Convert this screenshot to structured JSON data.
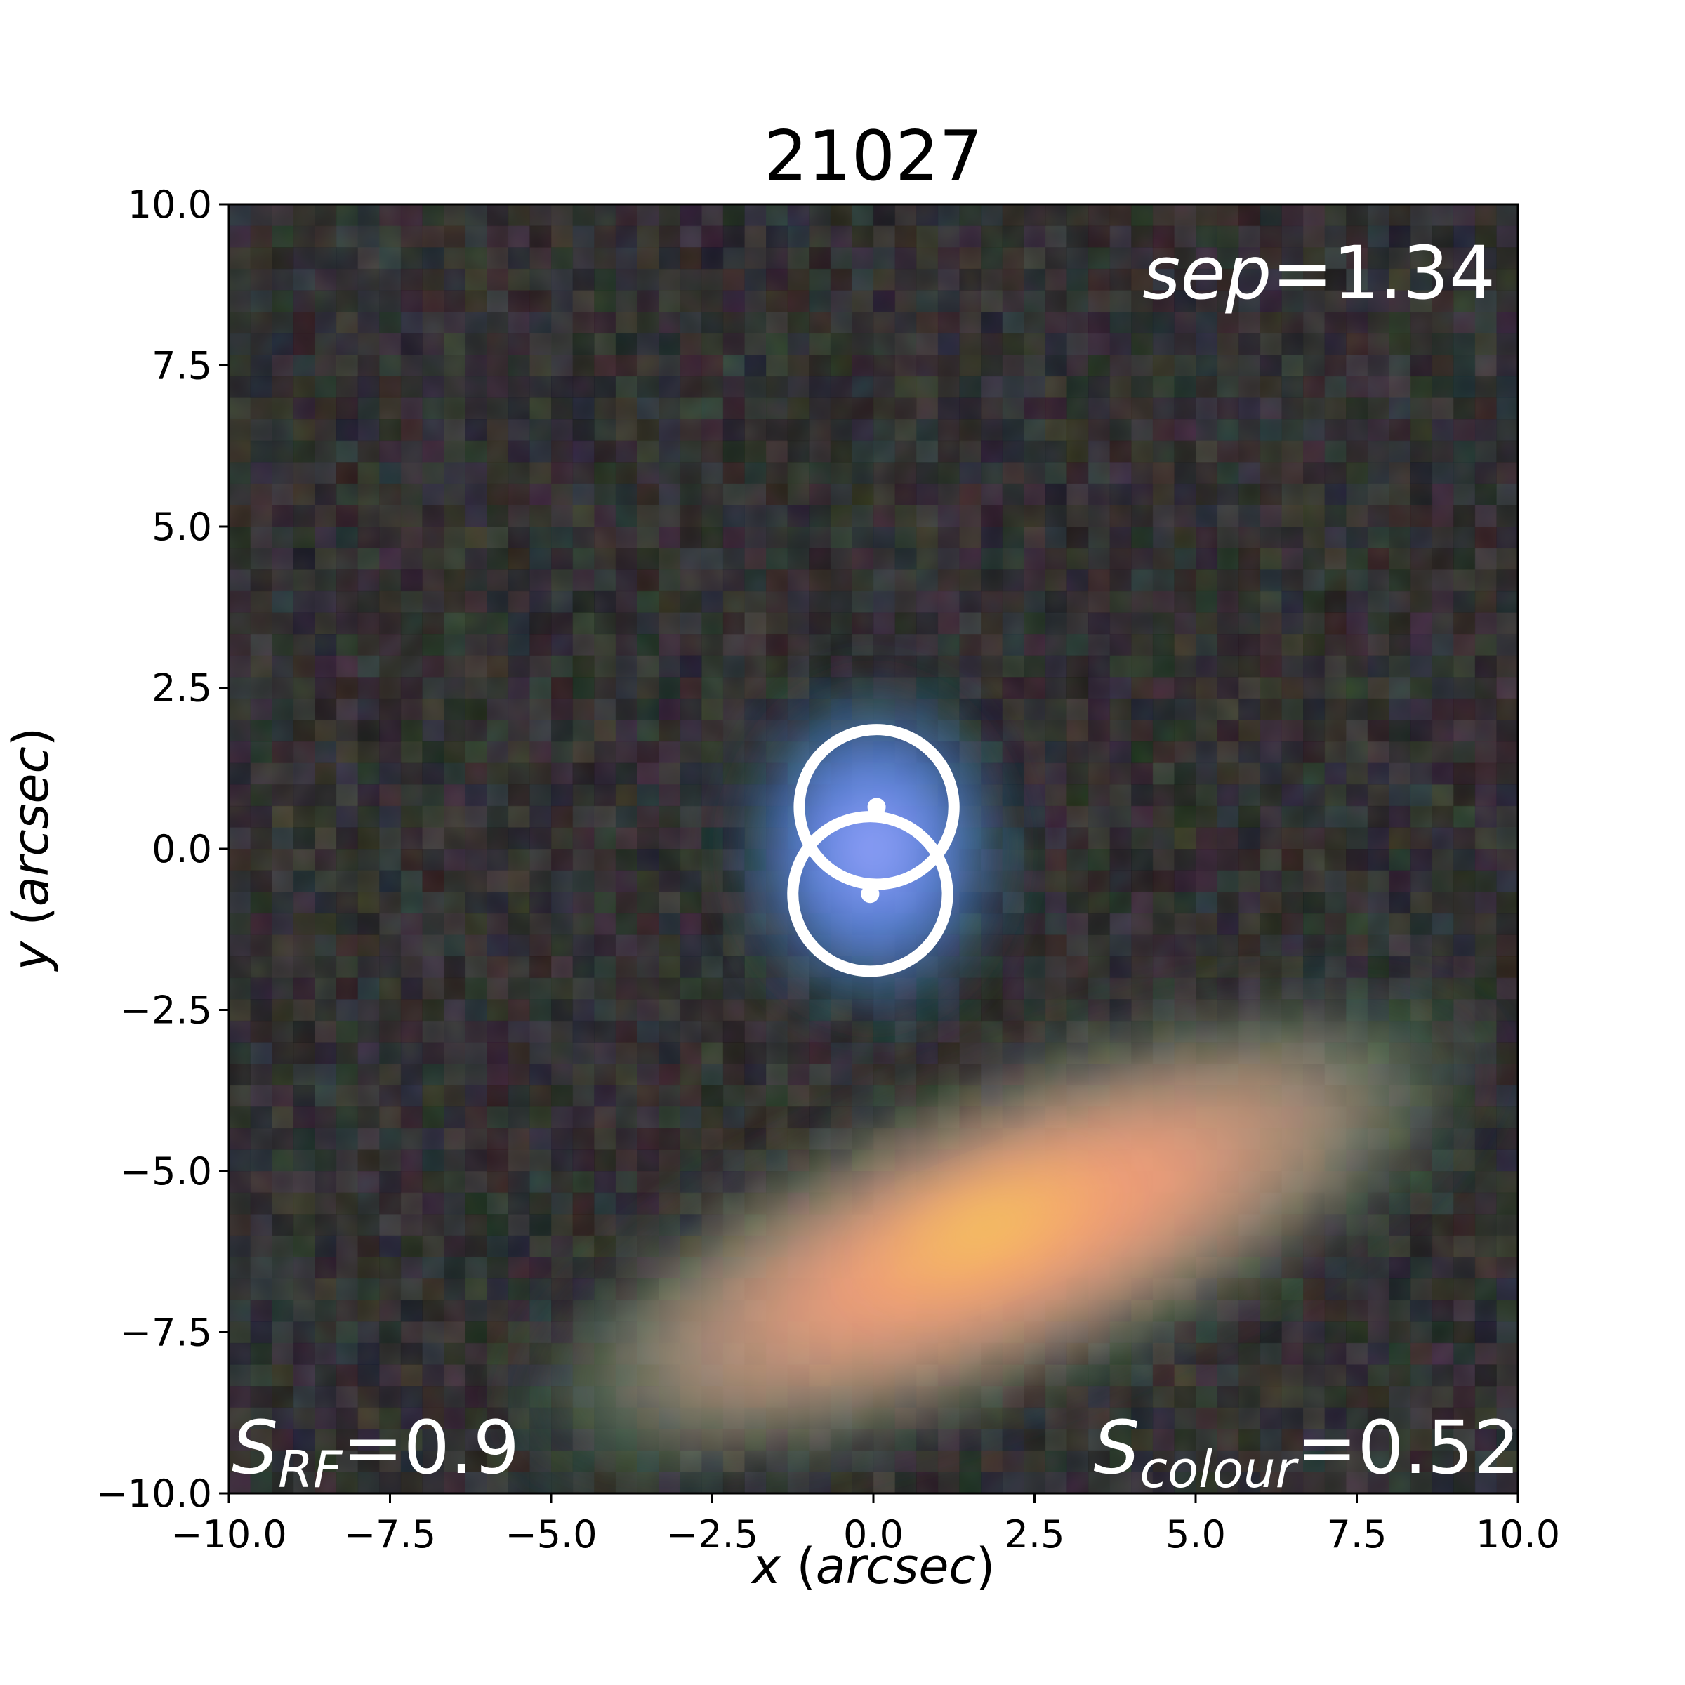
{
  "title": "21027",
  "x_axis": {
    "label_var": "x",
    "label_unit": "arcsec",
    "range": [
      -10,
      10
    ],
    "ticks": [
      "−10.0",
      "−7.5",
      "−5.0",
      "−2.5",
      "0.0",
      "2.5",
      "5.0",
      "7.5",
      "10.0"
    ]
  },
  "y_axis": {
    "label_var": "y",
    "label_unit": "arcsec",
    "range": [
      -10,
      10
    ],
    "ticks": [
      "−10.0",
      "−7.5",
      "−5.0",
      "−2.5",
      "0.0",
      "2.5",
      "5.0",
      "7.5",
      "10.0"
    ]
  },
  "annotations": {
    "sep": {
      "var": "sep",
      "value": "=1.34"
    },
    "s_rf": {
      "base": "S",
      "sub": "RF",
      "value": "=0.9"
    },
    "s_colour": {
      "base": "S",
      "sub": "colour",
      "value": "=0.52"
    }
  },
  "markers": [
    {
      "name": "upper-circle",
      "x": 0.05,
      "y": 0.65,
      "radius": 1.2
    },
    {
      "name": "lower-circle",
      "x": -0.05,
      "y": -0.7,
      "radius": 1.2
    }
  ],
  "sources": [
    {
      "name": "compact-blue-source",
      "x": 0.0,
      "y": 0.0,
      "color": "#8fa2ff"
    },
    {
      "name": "edge-on-galaxy",
      "x": 2.0,
      "y": -6.0,
      "color": "#ffa070"
    }
  ],
  "colors": {
    "marker": "#ffffff",
    "annotation": "#ffffff",
    "background": "#252225"
  }
}
